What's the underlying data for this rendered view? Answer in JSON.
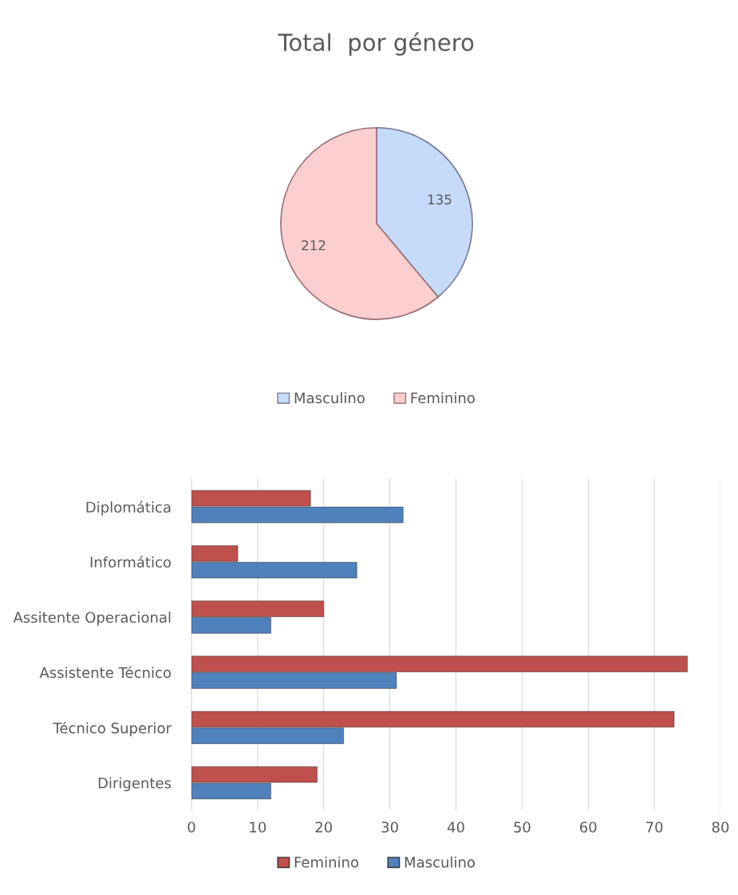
{
  "chart_data": [
    {
      "type": "pie",
      "title": "Total  por género",
      "categories": [
        "Masculino",
        "Feminino"
      ],
      "values": [
        135,
        212
      ],
      "colors": [
        "#c6dbfa",
        "#fbcfcf"
      ],
      "data_labels": true,
      "legend": "bottom"
    },
    {
      "type": "bar",
      "orientation": "horizontal",
      "categories": [
        "Diplomática",
        "Informático",
        "Assitente Operacional",
        "Assistente Técnico",
        "Técnico Superior",
        "Dirigentes"
      ],
      "series": [
        {
          "name": "Feminino",
          "color": "#c0504d",
          "values": [
            18,
            7,
            20,
            75,
            73,
            19
          ]
        },
        {
          "name": "Masculino",
          "color": "#4f81bd",
          "values": [
            32,
            25,
            12,
            31,
            23,
            12
          ]
        }
      ],
      "xlim": [
        0,
        80
      ],
      "xticks": [
        0,
        10,
        20,
        30,
        40,
        50,
        60,
        70,
        80
      ],
      "grid": "x",
      "legend": "bottom"
    }
  ]
}
